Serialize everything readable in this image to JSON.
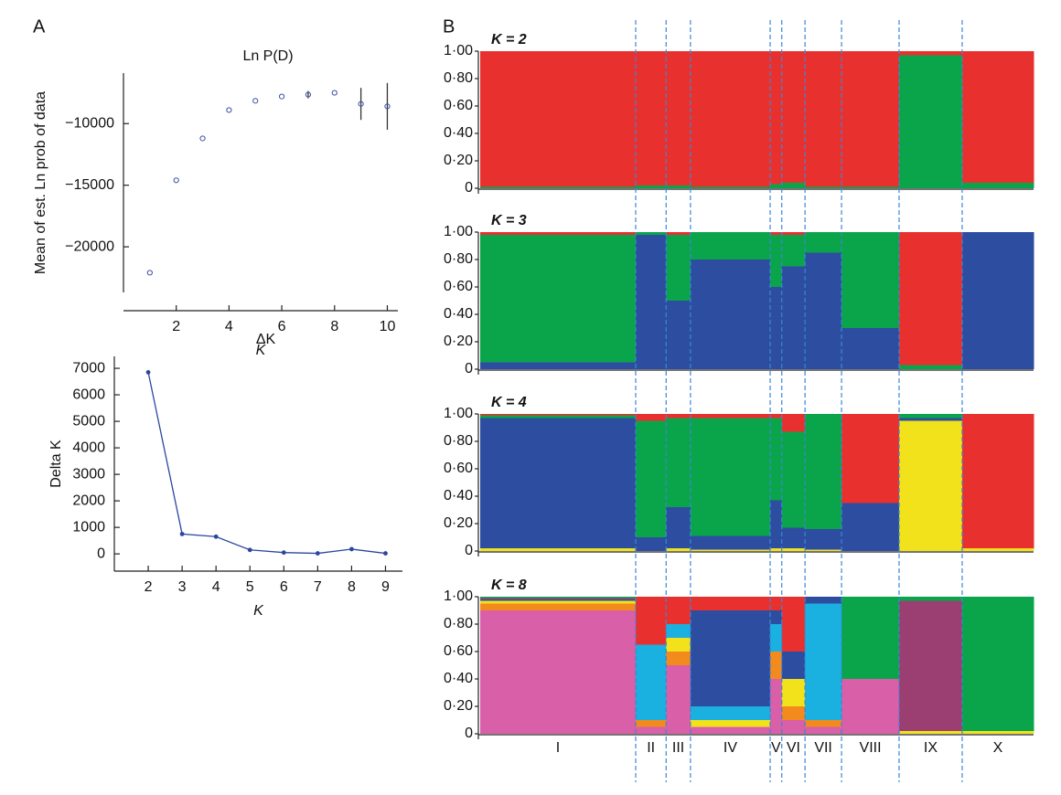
{
  "chart_data": [
    {
      "type": "scatter",
      "panel_label": "A",
      "title": "Ln P(D)",
      "x_label": "K",
      "y_label": "Mean of est. Ln prob of data",
      "x": [
        1,
        2,
        3,
        4,
        5,
        6,
        7,
        8,
        9,
        10
      ],
      "y": [
        -22100,
        -14600,
        -11200,
        -8900,
        -8150,
        -7800,
        -7650,
        -7500,
        -8400,
        -8600
      ],
      "errors": [
        0,
        0,
        0,
        0,
        0,
        0,
        300,
        0,
        1300,
        1900
      ],
      "color": "#3b4fa8",
      "xlim": [
        0,
        10.4
      ],
      "xticks": [
        2,
        4,
        6,
        8,
        10
      ],
      "ylim": [
        -23700,
        -5900
      ],
      "yticks": [
        {
          "value": -10000,
          "label": "−10000"
        },
        {
          "value": -15000,
          "label": "−15000"
        },
        {
          "value": -20000,
          "label": "−20000"
        }
      ]
    },
    {
      "type": "line",
      "title": "ΔK",
      "x_label": "K",
      "y_label": "Delta K",
      "x": [
        2,
        3,
        4,
        5,
        6,
        7,
        8,
        9
      ],
      "values": [
        6850,
        750,
        650,
        150,
        50,
        20,
        180,
        20
      ],
      "color": "#2a47a0",
      "xlim": [
        1,
        9.5
      ],
      "xticks": [
        2,
        3,
        4,
        5,
        6,
        7,
        8,
        9
      ],
      "ylim": [
        -650,
        7450
      ],
      "yticks": [
        0,
        1000,
        2000,
        3000,
        4000,
        5000,
        6000,
        7000
      ]
    },
    {
      "type": "structure",
      "panel_label": "B",
      "categories": [
        "I",
        "II",
        "III",
        "IV",
        "V",
        "VI",
        "VII",
        "VIII",
        "IX",
        "X"
      ],
      "ylim": [
        0,
        1
      ],
      "yticks": [
        0,
        {
          "value": 0.2,
          "label": "0·20"
        },
        {
          "value": 0.4,
          "label": "0·40"
        },
        {
          "value": 0.6,
          "label": "0·60"
        },
        {
          "value": 0.8,
          "label": "0·80"
        },
        {
          "value": 1,
          "label": "1·00"
        }
      ],
      "panels": [
        {
          "title": "K = 2",
          "series": [
            {
              "color": "#0aa54a",
              "values": [
                0.01,
                0.02,
                0.02,
                0.01,
                0.03,
                0.04,
                0.01,
                0.01,
                0.97,
                0.04
              ]
            },
            {
              "color": "#e8312f",
              "values": [
                0.99,
                0.98,
                0.98,
                0.99,
                0.97,
                0.96,
                0.99,
                0.99,
                0.03,
                0.96
              ]
            }
          ]
        },
        {
          "title": "K = 3",
          "series": [
            {
              "color": "#2d4da0",
              "values": [
                0.05,
                0.98,
                0.5,
                0.8,
                0.6,
                0.75,
                0.85,
                0.3,
                0,
                1
              ]
            },
            {
              "color": "#0aa54a",
              "values": [
                0.93,
                0.02,
                0.48,
                0.2,
                0.38,
                0.23,
                0.15,
                0.7,
                0.03,
                0
              ]
            },
            {
              "color": "#e8312f",
              "values": [
                0.02,
                0,
                0.02,
                0,
                0.02,
                0.02,
                0,
                0,
                0.97,
                0
              ]
            }
          ]
        },
        {
          "title": "K = 4",
          "series": [
            {
              "color": "#f2e21c",
              "values": [
                0.02,
                0,
                0.02,
                0.01,
                0.02,
                0.02,
                0.01,
                0,
                0.95,
                0.02
              ]
            },
            {
              "color": "#2d4da0",
              "values": [
                0.95,
                0.1,
                0.3,
                0.1,
                0.35,
                0.15,
                0.15,
                0.35,
                0.02,
                0
              ]
            },
            {
              "color": "#0aa54a",
              "values": [
                0.02,
                0.85,
                0.65,
                0.86,
                0.6,
                0.7,
                0.84,
                0,
                0.03,
                0
              ]
            },
            {
              "color": "#e8312f",
              "values": [
                0.01,
                0.05,
                0.03,
                0.03,
                0.03,
                0.13,
                0,
                0.65,
                0,
                0.98
              ]
            }
          ]
        },
        {
          "title": "K = 8",
          "series": [
            {
              "color": "#d95fa8",
              "values": [
                0.9,
                0.05,
                0.5,
                0.05,
                0.4,
                0.1,
                0.05,
                0.4,
                0,
                0
              ]
            },
            {
              "color": "#f28a1e",
              "values": [
                0.05,
                0.05,
                0.1,
                0,
                0.2,
                0.1,
                0.05,
                0,
                0,
                0
              ]
            },
            {
              "color": "#f2e21c",
              "values": [
                0.02,
                0,
                0.1,
                0.05,
                0,
                0.2,
                0,
                0,
                0.02,
                0.02
              ]
            },
            {
              "color": "#1ab0e0",
              "values": [
                0,
                0.55,
                0.1,
                0.1,
                0.2,
                0,
                0.85,
                0,
                0,
                0
              ]
            },
            {
              "color": "#2d4da0",
              "values": [
                0.01,
                0,
                0,
                0.7,
                0.1,
                0.2,
                0.05,
                0,
                0,
                0
              ]
            },
            {
              "color": "#e8312f",
              "values": [
                0,
                0.35,
                0.2,
                0.1,
                0.1,
                0.4,
                0,
                0,
                0,
                0
              ]
            },
            {
              "color": "#9b3f73",
              "values": [
                0.01,
                0,
                0,
                0,
                0,
                0,
                0,
                0,
                0.95,
                0
              ]
            },
            {
              "color": "#0aa54a",
              "values": [
                0.01,
                0,
                0,
                0,
                0,
                0,
                0,
                0.6,
                0.03,
                0.98
              ]
            }
          ]
        }
      ]
    }
  ]
}
